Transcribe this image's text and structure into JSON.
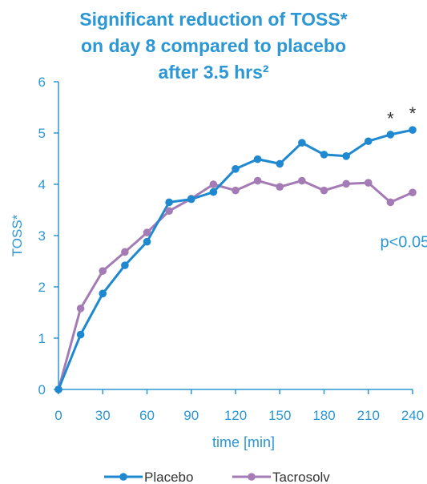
{
  "colors": {
    "title": "#2b97d4",
    "placebo": "#1e88d0",
    "tacrosolv": "#a47bb5",
    "axis": "#2b97d4",
    "text": "#333333"
  },
  "chart_data": {
    "type": "line",
    "title_lines": [
      "Significant reduction of TOSS*",
      "on day 8 compared to placebo",
      "after 3.5 hrs²"
    ],
    "xlabel": "time [min]",
    "ylabel": "TOSS*",
    "xlim": [
      0,
      240
    ],
    "ylim": [
      0,
      6
    ],
    "xticks": [
      0,
      30,
      60,
      90,
      120,
      150,
      180,
      210,
      240
    ],
    "yticks": [
      0,
      1,
      2,
      3,
      4,
      5,
      6
    ],
    "x": [
      0,
      15,
      30,
      45,
      60,
      75,
      90,
      105,
      120,
      135,
      150,
      165,
      180,
      195,
      210,
      225,
      240
    ],
    "series": [
      {
        "name": "Placebo",
        "values": [
          0,
          1.07,
          1.87,
          2.42,
          2.88,
          3.65,
          3.71,
          3.85,
          4.3,
          4.49,
          4.4,
          4.81,
          4.58,
          4.55,
          4.84,
          4.97,
          5.06
        ]
      },
      {
        "name": "Tacrosolv",
        "values": [
          0,
          1.58,
          2.31,
          2.68,
          3.06,
          3.48,
          3.72,
          4.0,
          3.88,
          4.07,
          3.95,
          4.07,
          3.88,
          4.01,
          4.03,
          3.65,
          3.84
        ]
      }
    ],
    "annotations": [
      {
        "text": "*",
        "x": 225,
        "y": 5.35
      },
      {
        "text": "*",
        "x": 240,
        "y": 5.45
      },
      {
        "text": "p<0.05",
        "x": 218,
        "y": 2.9
      }
    ],
    "legend_position": "bottom",
    "grid": false
  }
}
